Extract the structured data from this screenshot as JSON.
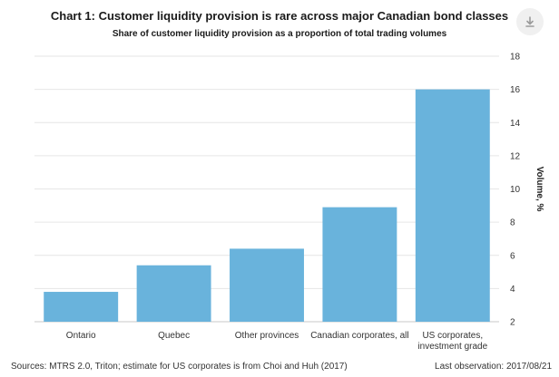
{
  "header": {
    "download_icon": "download-icon"
  },
  "chart_data": {
    "type": "bar",
    "title": "Chart 1: Customer liquidity provision is rare across major Canadian bond classes",
    "subtitle": "Share of customer liquidity provision as a proportion of total trading volumes",
    "categories": [
      "Ontario",
      "Quebec",
      "Other provinces",
      "Canadian corporates, all",
      "US corporates, investment grade"
    ],
    "category_lines": [
      [
        "Ontario"
      ],
      [
        "Quebec"
      ],
      [
        "Other provinces"
      ],
      [
        "Canadian corporates, all"
      ],
      [
        "US corporates,",
        "investment grade"
      ]
    ],
    "values": [
      3.8,
      5.4,
      6.4,
      8.9,
      16.0
    ],
    "xlabel": "",
    "ylabel": "Volume, %",
    "ylim": [
      2,
      18
    ],
    "yticks": [
      2,
      4,
      6,
      8,
      10,
      12,
      14,
      16,
      18
    ],
    "grid": true,
    "bar_color": "#69b3dc",
    "yaxis_side": "right"
  },
  "footer": {
    "source": "Sources: MTRS 2.0, Triton; estimate for US corporates is from Choi and Huh (2017)",
    "last_observation": "Last observation: 2017/08/21"
  }
}
